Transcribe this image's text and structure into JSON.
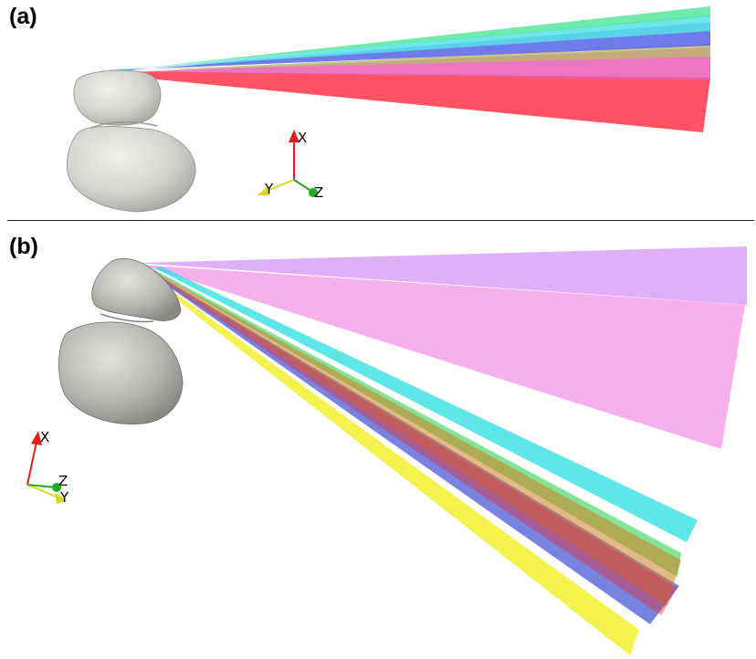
{
  "panels": [
    {
      "label": "(a)",
      "axes": {
        "x": "X",
        "y": "Y",
        "z": "Z"
      }
    },
    {
      "label": "(b)",
      "axes": {
        "x": "X",
        "y": "Y",
        "z": "Z"
      }
    }
  ],
  "colors": {
    "comet": "#d8d6d2",
    "x_axis": "#e02020",
    "y_axis": "#d9d920",
    "z_axis": "#22aa22"
  }
}
